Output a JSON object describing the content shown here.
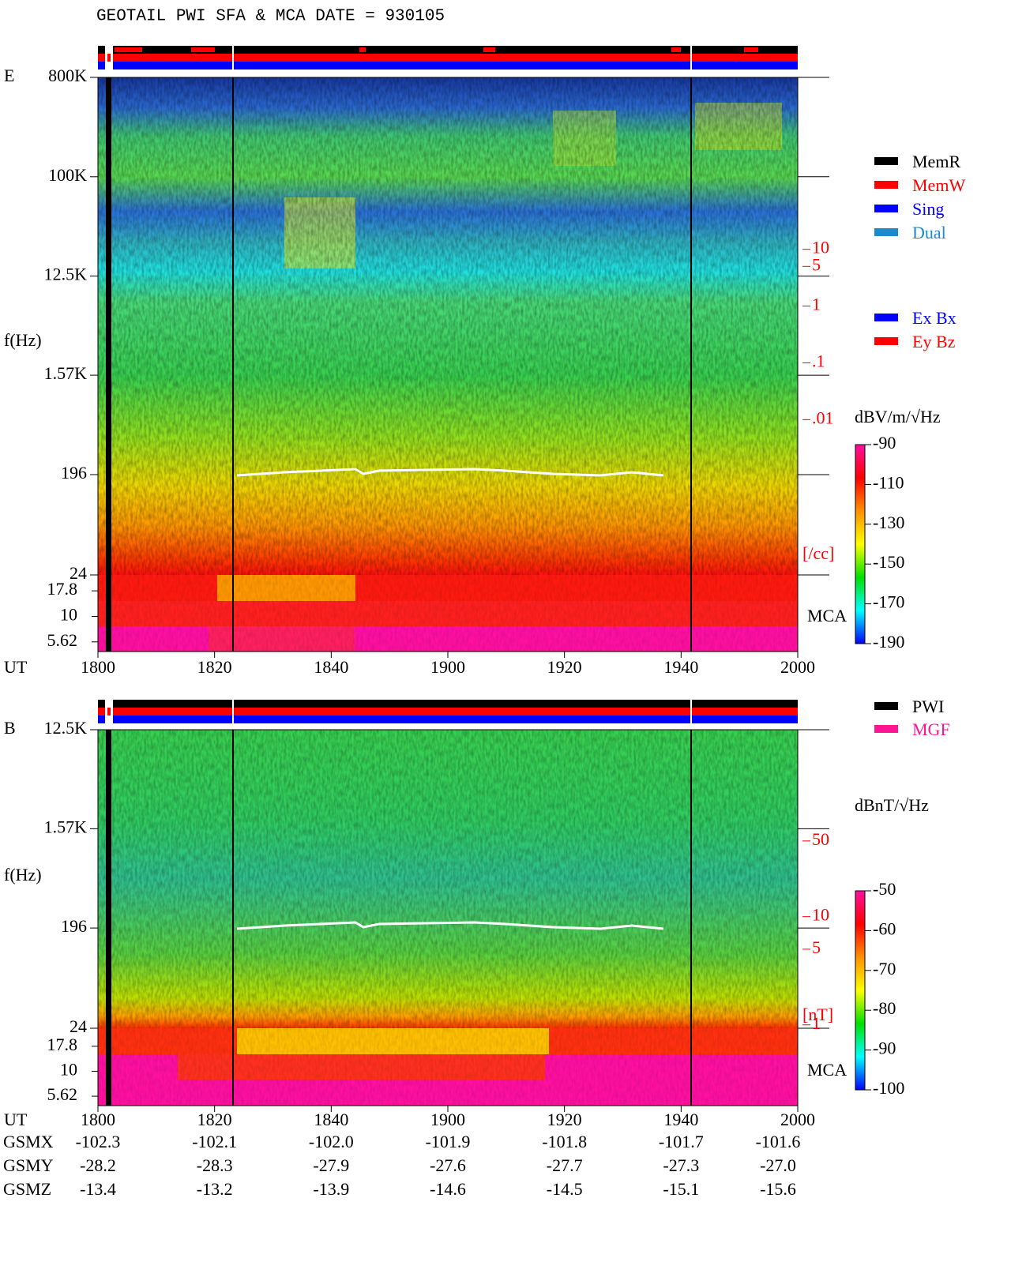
{
  "title": "GEOTAIL  PWI SFA & MCA   DATE = 930105",
  "chart_data": [
    {
      "type": "spectrogram",
      "label": "E",
      "ylabel": "f(Hz)",
      "xlabel": "UT",
      "xlim": [
        0,
        120
      ],
      "xticks": [
        {
          "value": 0,
          "label": "1800"
        },
        {
          "value": 20,
          "label": "1820"
        },
        {
          "value": 40,
          "label": "1840"
        },
        {
          "value": 60,
          "label": "1900"
        },
        {
          "value": 80,
          "label": "1920"
        },
        {
          "value": 100,
          "label": "1940"
        },
        {
          "value": 120,
          "label": "2000"
        }
      ],
      "log_y": true,
      "ylim": [
        24,
        800000
      ],
      "yticks": [
        {
          "value": 800000,
          "label": "800K"
        },
        {
          "value": 100000,
          "label": "100K"
        },
        {
          "value": 12500,
          "label": "12.5K"
        },
        {
          "value": 1570,
          "label": "1.57K"
        },
        196,
        24
      ],
      "mca_label": "MCA",
      "mca_ylim": [
        4.52,
        25.5
      ],
      "mca_yticks": [
        17.8,
        10,
        5.62
      ],
      "y2lim": [
        0.005,
        15
      ],
      "y2ticks": [
        10,
        5,
        1,
        {
          "value": 0.1,
          "label": ".1"
        },
        {
          "value": 0.01,
          "label": ".01"
        }
      ],
      "y2unit": "[/cc]",
      "y2color": "#ff0000",
      "colorbar": {
        "label": "dBV/m/√Hz",
        "zlim": [
          -190,
          -90
        ],
        "ticks": [
          -90,
          -110,
          -130,
          -150,
          -170,
          -190
        ],
        "colors": [
          "#ff10a0",
          "#ff0000",
          "#ff9000",
          "#ffff00",
          "#00e000",
          "#00ffff",
          "#0000ff"
        ]
      },
      "legend": [
        {
          "name": "MemR",
          "color": "#000000"
        },
        {
          "name": "MemW",
          "color": "#ff0000"
        },
        {
          "name": "Sing",
          "color": "#0000ff"
        },
        {
          "name": "Dual",
          "color": "#1e88c8"
        }
      ],
      "legend2": [
        {
          "name": "Ex Bx",
          "color": "#0000ff"
        },
        {
          "name": "Ey Bz",
          "color": "#ff0000"
        }
      ]
    },
    {
      "type": "spectrogram",
      "label": "B",
      "ylabel": "f(Hz)",
      "xlabel": "UT",
      "xlim": [
        0,
        120
      ],
      "xticks": [
        {
          "value": 0,
          "label": "1800"
        },
        {
          "value": 20,
          "label": "1820"
        },
        {
          "value": 40,
          "label": "1840"
        },
        {
          "value": 60,
          "label": "1900"
        },
        {
          "value": 80,
          "label": "1920"
        },
        {
          "value": 100,
          "label": "1940"
        },
        {
          "value": 120,
          "label": "2000"
        }
      ],
      "log_y": true,
      "ylim": [
        24,
        12500
      ],
      "yticks": [
        {
          "value": 12500,
          "label": "12.5K"
        },
        {
          "value": 1570,
          "label": "1.57K"
        },
        196,
        24
      ],
      "mca_label": "MCA",
      "mca_ylim": [
        4.52,
        27
      ],
      "mca_yticks": [
        17.8,
        10,
        5.62
      ],
      "y2lim": [
        0.9,
        60
      ],
      "y2ticks": [
        50,
        10,
        5,
        1
      ],
      "y2unit": "[nT]",
      "y2color": "#ff0000",
      "colorbar": {
        "label": "dBnT/√Hz",
        "zlim": [
          -100,
          -50
        ],
        "ticks": [
          -50,
          -60,
          -70,
          -80,
          -90,
          -100
        ],
        "colors": [
          "#ff10a0",
          "#ff0000",
          "#ff9000",
          "#ffff00",
          "#00e000",
          "#00ffff",
          "#0000ff"
        ]
      },
      "legend": [
        {
          "name": "PWI",
          "color": "#000000"
        },
        {
          "name": "MGF",
          "color": "#ff1493"
        }
      ]
    }
  ],
  "orbit": {
    "rows": [
      {
        "label": "GSMX",
        "values": [
          "-102.3",
          "-102.1",
          "-102.0",
          "-101.9",
          "-101.8",
          "-101.7",
          "-101.6"
        ]
      },
      {
        "label": "GSMY",
        "values": [
          "-28.2",
          "-28.3",
          "-27.9",
          "-27.6",
          "-27.7",
          "-27.3",
          "-27.0"
        ]
      },
      {
        "label": "GSMZ",
        "values": [
          "-13.4",
          "-13.2",
          "-13.9",
          "-14.6",
          "-14.5",
          "-15.1",
          "-15.6"
        ]
      }
    ]
  }
}
